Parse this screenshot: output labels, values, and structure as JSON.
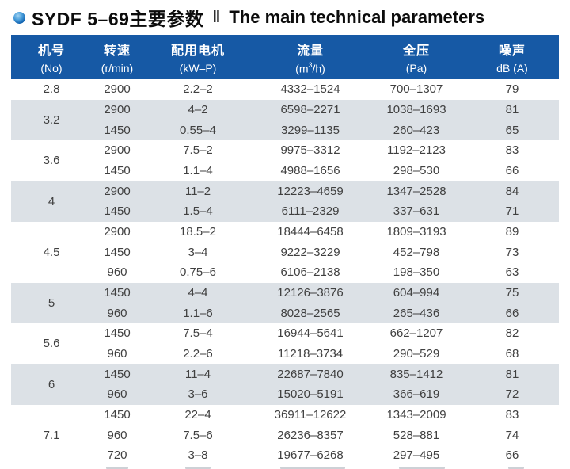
{
  "title": {
    "zh": "SYDF 5–69主要参数",
    "divider": "‖",
    "en": "The main technical parameters"
  },
  "colors": {
    "header_bg": "#1659a5",
    "band_bg": "#dce1e6",
    "accent_blue": "#0c5fae",
    "text": "#404040"
  },
  "table": {
    "headers": [
      {
        "zh": "机号",
        "sub": "(No)"
      },
      {
        "zh": "转速",
        "sub": "(r/min)"
      },
      {
        "zh": "配用电机",
        "sub": "(kW–P)"
      },
      {
        "zh": "流量",
        "sub_parts": {
          "pre": "(m",
          "sup": "3",
          "post": "/h)"
        }
      },
      {
        "zh": "全压",
        "sub": "(Pa)"
      },
      {
        "zh": "噪声",
        "sub": "dB (A)"
      }
    ],
    "groups": [
      {
        "no": "2.8",
        "shaded": false,
        "rows": [
          [
            "2900",
            "2.2–2",
            "4332–1524",
            "700–1307",
            "79"
          ]
        ]
      },
      {
        "no": "3.2",
        "shaded": true,
        "rows": [
          [
            "2900",
            "4–2",
            "6598–2271",
            "1038–1693",
            "81"
          ],
          [
            "1450",
            "0.55–4",
            "3299–1135",
            "260–423",
            "65"
          ]
        ]
      },
      {
        "no": "3.6",
        "shaded": false,
        "rows": [
          [
            "2900",
            "7.5–2",
            "9975–3312",
            "1192–2123",
            "83"
          ],
          [
            "1450",
            "1.1–4",
            "4988–1656",
            "298–530",
            "66"
          ]
        ]
      },
      {
        "no": "4",
        "shaded": true,
        "rows": [
          [
            "2900",
            "11–2",
            "12223–4659",
            "1347–2528",
            "84"
          ],
          [
            "1450",
            "1.5–4",
            "6111–2329",
            "337–631",
            "71"
          ]
        ]
      },
      {
        "no": "4.5",
        "shaded": false,
        "rows": [
          [
            "2900",
            "18.5–2",
            "18444–6458",
            "1809–3193",
            "89"
          ],
          [
            "1450",
            "3–4",
            "9222–3229",
            "452–798",
            "73"
          ],
          [
            "960",
            "0.75–6",
            "6106–2138",
            "198–350",
            "63"
          ]
        ]
      },
      {
        "no": "5",
        "shaded": true,
        "rows": [
          [
            "1450",
            "4–4",
            "12126–3876",
            "604–994",
            "75"
          ],
          [
            "960",
            "1.1–6",
            "8028–2565",
            "265–436",
            "66"
          ]
        ]
      },
      {
        "no": "5.6",
        "shaded": false,
        "rows": [
          [
            "1450",
            "7.5–4",
            "16944–5641",
            "662–1207",
            "82"
          ],
          [
            "960",
            "2.2–6",
            "11218–3734",
            "290–529",
            "68"
          ]
        ]
      },
      {
        "no": "6",
        "shaded": true,
        "rows": [
          [
            "1450",
            "11–4",
            "22687–7840",
            "835–1412",
            "81"
          ],
          [
            "960",
            "3–6",
            "15020–5191",
            "366–619",
            "72"
          ]
        ]
      },
      {
        "no": "7.1",
        "shaded": false,
        "rows": [
          [
            "1450",
            "22–4",
            "36911–12622",
            "1343–2009",
            "83"
          ],
          [
            "960",
            "7.5–6",
            "26236–8357",
            "528–881",
            "74"
          ],
          [
            "720",
            "3–8",
            "19677–6268",
            "297–495",
            "66"
          ]
        ]
      }
    ]
  }
}
